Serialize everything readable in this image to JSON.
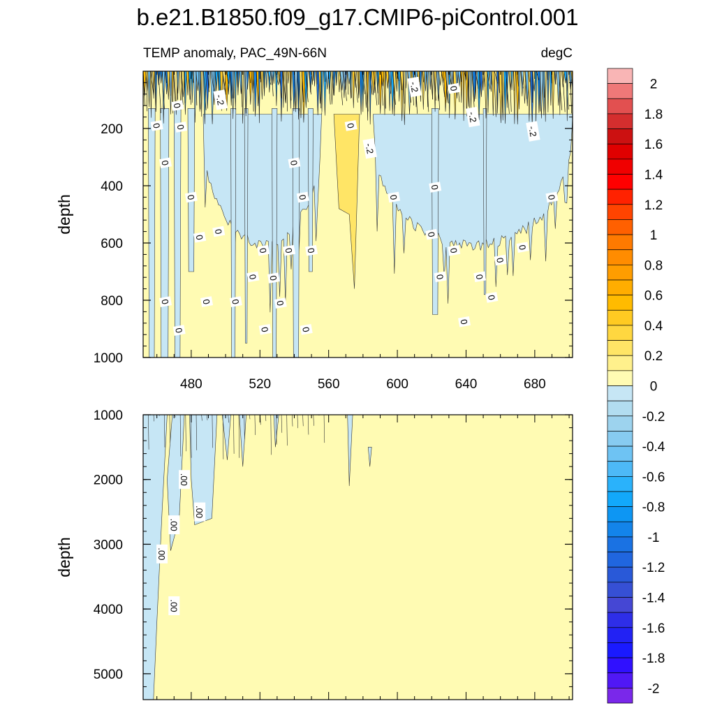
{
  "chart_data": {
    "type": "heatmap",
    "title": "b.e21.B1850.f09_g17.CMIP6-piControl.001",
    "subtitle_left": "TEMP anomaly, PAC_49N-66N",
    "subtitle_right": "degC",
    "ylabel": "depth",
    "x_range": [
      452,
      702
    ],
    "x_ticks": [
      480,
      520,
      560,
      600,
      640,
      680
    ],
    "panels": [
      {
        "name": "upper",
        "ylim": [
          0,
          1000
        ],
        "y_ticks": [
          200,
          400,
          600,
          800,
          1000
        ],
        "y_tick_labels": [
          "200",
          "400",
          "600",
          "800",
          "1000"
        ],
        "contour_labels": [
          {
            "text": "-.2",
            "x": 497,
            "y": 100
          },
          {
            "text": "0",
            "x": 472,
            "y": 120
          },
          {
            "text": "0",
            "x": 460,
            "y": 190
          },
          {
            "text": "0",
            "x": 474,
            "y": 195
          },
          {
            "text": "0",
            "x": 465,
            "y": 320
          },
          {
            "text": "0",
            "x": 480,
            "y": 440
          },
          {
            "text": "0",
            "x": 485,
            "y": 580
          },
          {
            "text": "0",
            "x": 496,
            "y": 560
          },
          {
            "text": "0",
            "x": 465,
            "y": 805
          },
          {
            "text": "0",
            "x": 473,
            "y": 905
          },
          {
            "text": "0",
            "x": 489,
            "y": 805
          },
          {
            "text": "0",
            "x": 506,
            "y": 805
          },
          {
            "text": "0",
            "x": 516,
            "y": 718
          },
          {
            "text": "0",
            "x": 522,
            "y": 626
          },
          {
            "text": "0",
            "x": 528,
            "y": 722
          },
          {
            "text": "0",
            "x": 532,
            "y": 810
          },
          {
            "text": "0",
            "x": 523,
            "y": 902
          },
          {
            "text": "0",
            "x": 537,
            "y": 626
          },
          {
            "text": "0",
            "x": 550,
            "y": 626
          },
          {
            "text": "0",
            "x": 547,
            "y": 902
          },
          {
            "text": "0",
            "x": 545,
            "y": 440
          },
          {
            "text": "0",
            "x": 540,
            "y": 320
          },
          {
            "text": "0",
            "x": 573,
            "y": 190
          },
          {
            "text": "-.2",
            "x": 584,
            "y": 270
          },
          {
            "text": "0",
            "x": 598,
            "y": 440
          },
          {
            "text": "-.2",
            "x": 610,
            "y": 55
          },
          {
            "text": "0",
            "x": 622,
            "y": 405
          },
          {
            "text": "0",
            "x": 620,
            "y": 570
          },
          {
            "text": "0",
            "x": 625,
            "y": 718
          },
          {
            "text": "0",
            "x": 633,
            "y": 626
          },
          {
            "text": "0",
            "x": 633,
            "y": 60
          },
          {
            "text": "-.2",
            "x": 644,
            "y": 160
          },
          {
            "text": "0",
            "x": 639,
            "y": 875
          },
          {
            "text": "0",
            "x": 648,
            "y": 718
          },
          {
            "text": "0",
            "x": 655,
            "y": 790
          },
          {
            "text": "0",
            "x": 660,
            "y": 660
          },
          {
            "text": "0",
            "x": 673,
            "y": 615
          },
          {
            "text": "-.2",
            "x": 679,
            "y": 210
          },
          {
            "text": "0",
            "x": 690,
            "y": 440
          }
        ]
      },
      {
        "name": "lower",
        "ylim": [
          1000,
          5400
        ],
        "y_ticks": [
          1000,
          2000,
          3000,
          4000,
          5000
        ],
        "y_tick_labels": [
          "1000",
          "2000",
          "3000",
          "4000",
          "5000"
        ],
        "contour_labels": [
          {
            "text": ".00",
            "x": 476,
            "y": 2000
          },
          {
            "text": ".00",
            "x": 470,
            "y": 2700
          },
          {
            "text": ".00",
            "x": 485,
            "y": 2500
          },
          {
            "text": ".00",
            "x": 463,
            "y": 3150
          },
          {
            "text": ".00",
            "x": 470,
            "y": 3950
          }
        ]
      }
    ],
    "colorbar": {
      "levels": [
        2.1,
        2,
        1.9,
        1.8,
        1.7,
        1.6,
        1.5,
        1.4,
        1.3,
        1.2,
        1.1,
        1,
        0.9,
        0.8,
        0.7,
        0.6,
        0.5,
        0.4,
        0.3,
        0.2,
        0.1,
        0,
        -0.1,
        -0.2,
        -0.3,
        -0.4,
        -0.5,
        -0.6,
        -0.7,
        -0.8,
        -0.9,
        -1,
        -1.1,
        -1.2,
        -1.3,
        -1.4,
        -1.5,
        -1.6,
        -1.7,
        -1.8,
        -1.9,
        -2
      ],
      "labels": [
        "2",
        "1.8",
        "1.6",
        "1.4",
        "1.2",
        "1",
        "0.8",
        "0.6",
        "0.4",
        "0.2",
        "0",
        "-0.2",
        "-0.4",
        "-0.6",
        "-0.8",
        "-1",
        "-1.2",
        "-1.4",
        "-1.6",
        "-1.8",
        "-2"
      ],
      "colors": [
        "#f9b5b5",
        "#ef7878",
        "#e25050",
        "#d42e2e",
        "#cc1111",
        "#e00000",
        "#f00000",
        "#ff0000",
        "#ff2200",
        "#ff4400",
        "#ff6000",
        "#ff7a00",
        "#ff8c00",
        "#ff9d00",
        "#ffad00",
        "#ffbb00",
        "#ffca22",
        "#ffd740",
        "#ffe566",
        "#fff08c",
        "#fffbb3",
        "#c6e6f5",
        "#b2ddf0",
        "#9dd3ee",
        "#87cbf0",
        "#6ec3f3",
        "#4db9f7",
        "#2ab2fb",
        "#12a8fb",
        "#0d96f3",
        "#1384ea",
        "#1a72e3",
        "#2066df",
        "#2959d8",
        "#3650d5",
        "#4547d4",
        "#2e2ee8",
        "#2222f4",
        "#1a1aff",
        "#3010ff",
        "#5018f5",
        "#7a28ea"
      ]
    },
    "colors": {
      "positive_fill": "#fffbb3",
      "negative_fill": "#c6e6f5"
    }
  }
}
